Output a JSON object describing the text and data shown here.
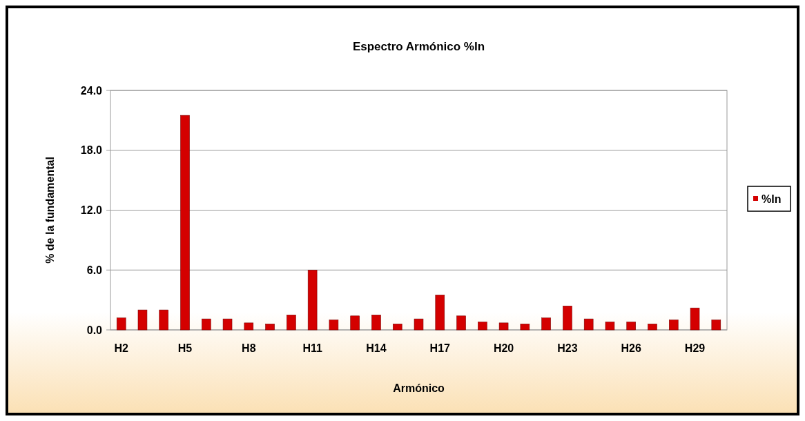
{
  "chart_data": {
    "type": "bar",
    "title": "Espectro Armónico %In",
    "xlabel": "Armónico",
    "ylabel": "% de la fundamental",
    "categories": [
      "H2",
      null,
      null,
      "H5",
      null,
      null,
      "H8",
      null,
      null,
      "H11",
      null,
      null,
      "H14",
      null,
      null,
      "H17",
      null,
      null,
      "H20",
      null,
      null,
      "H23",
      null,
      null,
      "H26",
      null,
      null,
      "H29",
      null
    ],
    "series": [
      {
        "name": "%In",
        "color": "#d40000",
        "values": [
          1.2,
          2.0,
          2.0,
          21.5,
          1.1,
          1.1,
          0.7,
          0.6,
          1.5,
          6.0,
          1.0,
          1.4,
          1.5,
          0.6,
          1.1,
          3.5,
          1.4,
          0.8,
          0.7,
          0.6,
          1.2,
          2.4,
          1.1,
          0.8,
          0.8,
          0.6,
          1.0,
          2.2,
          1.0
        ]
      }
    ],
    "ylim": [
      0,
      24
    ],
    "yticks": [
      {
        "value": 0,
        "label": "0.0"
      },
      {
        "value": 6,
        "label": "6.0"
      },
      {
        "value": 12,
        "label": "12.0"
      },
      {
        "value": 18,
        "label": "18.0"
      },
      {
        "value": 24,
        "label": "24.0"
      }
    ],
    "grid": "y",
    "legend": "right"
  }
}
